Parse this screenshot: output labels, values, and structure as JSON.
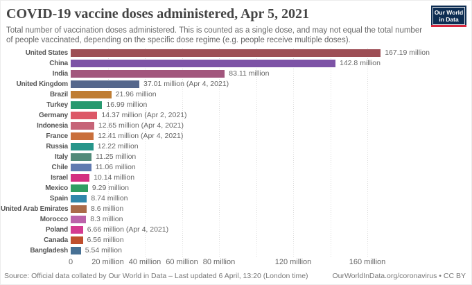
{
  "header": {
    "title": "COVID-19 vaccine doses administered, Apr 5, 2021",
    "subtitle": "Total number of vaccination doses administered. This is counted as a single dose, and may not equal the total number of people vaccinated, depending on the specific dose regime (e.g. people receive multiple doses).",
    "logo": {
      "line1": "Our World",
      "line2": "in Data",
      "bg_color": "#0d2d52",
      "stripe_color": "#d7263d"
    }
  },
  "chart_data": {
    "type": "bar",
    "orientation": "horizontal",
    "title": "COVID-19 vaccine doses administered, Apr 5, 2021",
    "xlabel": "",
    "ylabel": "",
    "xlim": [
      0,
      160
    ],
    "unit": "million doses",
    "grid": "vertical dotted",
    "categories": [
      "United States",
      "China",
      "India",
      "United Kingdom",
      "Brazil",
      "Turkey",
      "Germany",
      "Indonesia",
      "France",
      "Russia",
      "Italy",
      "Chile",
      "Israel",
      "Mexico",
      "Spain",
      "United Arab Emirates",
      "Morocco",
      "Poland",
      "Canada",
      "Bangladesh"
    ],
    "values": [
      167.19,
      142.8,
      83.11,
      37.01,
      21.96,
      16.99,
      14.37,
      12.65,
      12.41,
      12.22,
      11.25,
      11.06,
      10.14,
      9.29,
      8.74,
      8.6,
      8.3,
      6.66,
      6.56,
      5.54
    ],
    "value_labels": [
      "167.19 million",
      "142.8 million",
      "83.11 million",
      "37.01 million (Apr 4, 2021)",
      "21.96 million",
      "16.99 million",
      "14.37 million (Apr 2, 2021)",
      "12.65 million (Apr 4, 2021)",
      "12.41 million (Apr 4, 2021)",
      "12.22 million",
      "11.25 million",
      "11.06 million",
      "10.14 million",
      "9.29 million",
      "8.74 million",
      "8.6 million",
      "8.3 million",
      "6.66 million (Apr 4, 2021)",
      "6.56 million",
      "5.54 million"
    ],
    "bar_colors": [
      "#9d4e55",
      "#7d53a6",
      "#a2567d",
      "#55678c",
      "#bf7d33",
      "#27996f",
      "#dc5767",
      "#c66478",
      "#c96f3b",
      "#26958a",
      "#518a79",
      "#607ab0",
      "#d42f80",
      "#2f9e62",
      "#3087ab",
      "#aa6b4a",
      "#bb63aa",
      "#d43a90",
      "#bf4f2e",
      "#477094"
    ],
    "x_ticks": [
      {
        "value": 0,
        "label": "0"
      },
      {
        "value": 20,
        "label": "20 million"
      },
      {
        "value": 40,
        "label": "40 million"
      },
      {
        "value": 60,
        "label": "60 million"
      },
      {
        "value": 80,
        "label": "80 million"
      },
      {
        "value": 100,
        "label": ""
      },
      {
        "value": 120,
        "label": "120 million"
      },
      {
        "value": 140,
        "label": ""
      },
      {
        "value": 160,
        "label": "160 million"
      }
    ]
  },
  "footer": {
    "source": "Source: Official data collated by Our World in Data – Last updated 6 April, 13:20 (London time)",
    "link": "OurWorldInData.org/coronavirus • CC BY"
  }
}
